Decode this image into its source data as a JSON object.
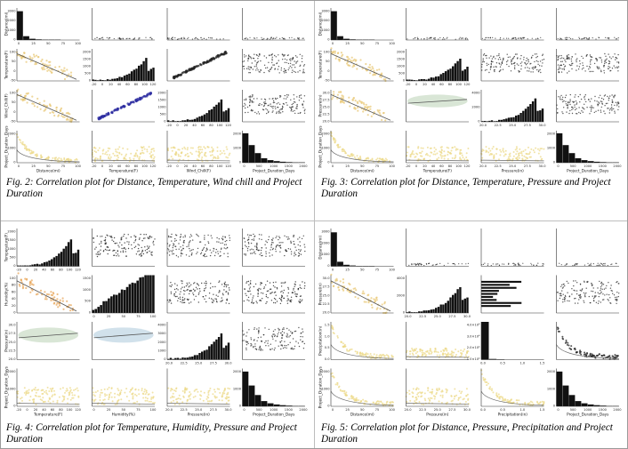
{
  "figures": [
    {
      "id": "fig2",
      "caption": "Fig. 2: Correlation plot for Distance, Temperature, Wind chill and Project Duration",
      "variables": [
        "Distance(mi)",
        "Temperature(F)",
        "Wind_Chill(F)",
        "Project_Duration_Days"
      ],
      "cells": [
        {
          "r": 0,
          "c": 0,
          "kind": "hist-low",
          "yticks": [
            "3000",
            "2000",
            "1000",
            "0"
          ],
          "xticks": [
            "0",
            "25",
            "50",
            "75",
            "100"
          ]
        },
        {
          "r": 0,
          "c": 1,
          "kind": "flat"
        },
        {
          "r": 0,
          "c": 2,
          "kind": "flat"
        },
        {
          "r": 0,
          "c": 3,
          "kind": "flat"
        },
        {
          "r": 1,
          "c": 0,
          "kind": "scatter-neg",
          "color": "#e9c97a",
          "yticks": [
            "100",
            "50",
            "0",
            "-50"
          ]
        },
        {
          "r": 1,
          "c": 1,
          "kind": "hist-right",
          "yticks": [
            "2000",
            "1500",
            "1000",
            "500",
            "0"
          ],
          "xticks": [
            "-20",
            "0",
            "20",
            "40",
            "60",
            "80",
            "100",
            "120"
          ]
        },
        {
          "r": 1,
          "c": 2,
          "kind": "diag",
          "color": "#222222"
        },
        {
          "r": 1,
          "c": 3,
          "kind": "blob",
          "color": "#222222"
        },
        {
          "r": 2,
          "c": 0,
          "kind": "scatter-neg",
          "color": "#e9c97a",
          "yticks": [
            "100",
            "50",
            "0",
            "-50"
          ]
        },
        {
          "r": 2,
          "c": 1,
          "kind": "diag",
          "color": "#2c2ca0"
        },
        {
          "r": 2,
          "c": 2,
          "kind": "hist-right",
          "yticks": [
            "2000",
            "1500",
            "1000",
            "500",
            "0"
          ],
          "xticks": [
            "-20",
            "0",
            "20",
            "40",
            "60",
            "80",
            "100",
            "120"
          ]
        },
        {
          "r": 2,
          "c": 3,
          "kind": "blob",
          "color": "#222222"
        },
        {
          "r": 3,
          "c": 0,
          "kind": "decay",
          "color": "#ecd98a",
          "yticks": [
            "2000",
            "1000",
            "0"
          ],
          "xticks": [
            "0",
            "25",
            "50",
            "75",
            "100"
          ]
        },
        {
          "r": 3,
          "c": 1,
          "kind": "band",
          "color": "#ecd98a",
          "xticks": [
            "-20",
            "0",
            "20",
            "40",
            "60",
            "80",
            "100",
            "120"
          ]
        },
        {
          "r": 3,
          "c": 2,
          "kind": "band",
          "color": "#ecd98a",
          "xticks": [
            "-20",
            "0",
            "20",
            "40",
            "60",
            "80",
            "100",
            "120"
          ]
        },
        {
          "r": 3,
          "c": 3,
          "kind": "hist-left",
          "yticks": [
            "2000",
            "1000",
            "0"
          ],
          "xticks": [
            "0",
            "500",
            "1000",
            "1500",
            "2000"
          ]
        }
      ]
    },
    {
      "id": "fig3",
      "caption": "Fig. 3: Correlation plot for Distance, Temperature, Pressure and Project Duration",
      "variables": [
        "Distance(mi)",
        "Temperature(F)",
        "Pressure(in)",
        "Project_Duration_Days"
      ],
      "cells": [
        {
          "r": 0,
          "c": 0,
          "kind": "hist-low",
          "yticks": [
            "3000",
            "2000",
            "1000",
            "0"
          ],
          "xticks": [
            "0",
            "25",
            "50",
            "75",
            "100"
          ]
        },
        {
          "r": 0,
          "c": 1,
          "kind": "flat"
        },
        {
          "r": 0,
          "c": 2,
          "kind": "flat"
        },
        {
          "r": 0,
          "c": 3,
          "kind": "flat"
        },
        {
          "r": 1,
          "c": 0,
          "kind": "scatter-neg",
          "color": "#e9c97a",
          "yticks": [
            "100",
            "50",
            "0",
            "-50"
          ]
        },
        {
          "r": 1,
          "c": 1,
          "kind": "hist-right",
          "yticks": [
            "2000",
            "1500",
            "1000",
            "500",
            "0"
          ],
          "xticks": [
            "-20",
            "0",
            "20",
            "40",
            "60",
            "80",
            "100",
            "120"
          ]
        },
        {
          "r": 1,
          "c": 2,
          "kind": "blob",
          "color": "#222222"
        },
        {
          "r": 1,
          "c": 3,
          "kind": "blob",
          "color": "#222222"
        },
        {
          "r": 2,
          "c": 0,
          "kind": "scatter-neg",
          "color": "#e9c97a",
          "yticks": [
            "30.0",
            "27.5",
            "25.0",
            "22.5",
            "20.0"
          ]
        },
        {
          "r": 2,
          "c": 1,
          "kind": "band-up",
          "color": "#cfe0cc"
        },
        {
          "r": 2,
          "c": 2,
          "kind": "hist-right",
          "yticks": [
            "4000",
            "2000",
            "0"
          ],
          "xticks": [
            "20.0",
            "22.5",
            "25.0",
            "27.5",
            "30.0"
          ]
        },
        {
          "r": 2,
          "c": 3,
          "kind": "blob",
          "color": "#222222"
        },
        {
          "r": 3,
          "c": 0,
          "kind": "decay",
          "color": "#ecd98a",
          "yticks": [
            "2000",
            "1000",
            "0"
          ],
          "xticks": [
            "0",
            "25",
            "50",
            "75",
            "100"
          ]
        },
        {
          "r": 3,
          "c": 1,
          "kind": "band",
          "color": "#ecd98a",
          "xticks": [
            "-20",
            "0",
            "20",
            "40",
            "60",
            "80",
            "100",
            "120"
          ]
        },
        {
          "r": 3,
          "c": 2,
          "kind": "band",
          "color": "#ecd98a",
          "xticks": [
            "20.0",
            "22.5",
            "25.0",
            "27.5",
            "30.0"
          ]
        },
        {
          "r": 3,
          "c": 3,
          "kind": "hist-left",
          "yticks": [
            "2000",
            "1000",
            "0"
          ],
          "xticks": [
            "0",
            "500",
            "1000",
            "1500",
            "2000"
          ]
        }
      ]
    },
    {
      "id": "fig4",
      "caption": "Fig. 4: Correlation plot for Temperature, Humidity, Pressure and Project Duration",
      "variables": [
        "Temperature(F)",
        "Humidity(%)",
        "Pressure(in)",
        "Project_Duration_Days"
      ],
      "cells": [
        {
          "r": 0,
          "c": 0,
          "kind": "hist-right",
          "yticks": [
            "2000",
            "1500",
            "1000",
            "500",
            "0"
          ],
          "xticks": [
            "-20",
            "0",
            "20",
            "40",
            "60",
            "80",
            "100",
            "120"
          ]
        },
        {
          "r": 0,
          "c": 1,
          "kind": "blob",
          "color": "#111111"
        },
        {
          "r": 0,
          "c": 2,
          "kind": "blob",
          "color": "#222222"
        },
        {
          "r": 0,
          "c": 3,
          "kind": "blob",
          "color": "#222222"
        },
        {
          "r": 1,
          "c": 0,
          "kind": "scatter-neg",
          "color": "#e8a85e",
          "yticks": [
            "100",
            "80",
            "60",
            "40",
            "20",
            "0"
          ]
        },
        {
          "r": 1,
          "c": 1,
          "kind": "hist-ramp",
          "yticks": [
            "1500",
            "1000",
            "500",
            "0"
          ],
          "xticks": [
            "0",
            "25",
            "50",
            "75",
            "100"
          ]
        },
        {
          "r": 1,
          "c": 2,
          "kind": "blob",
          "color": "#111111"
        },
        {
          "r": 1,
          "c": 3,
          "kind": "blob",
          "color": "#111111"
        },
        {
          "r": 2,
          "c": 0,
          "kind": "band-up",
          "color": "#cfe0cc",
          "yticks": [
            "30.0",
            "27.5",
            "25.0",
            "22.5",
            "20.0"
          ]
        },
        {
          "r": 2,
          "c": 1,
          "kind": "band-up",
          "color": "#c5d9e6"
        },
        {
          "r": 2,
          "c": 2,
          "kind": "hist-right",
          "yticks": [
            "4000",
            "3000",
            "2000",
            "1000",
            "0"
          ],
          "xticks": [
            "20.0",
            "22.5",
            "25.0",
            "27.5",
            "30.0"
          ]
        },
        {
          "r": 2,
          "c": 3,
          "kind": "blob",
          "color": "#222222"
        },
        {
          "r": 3,
          "c": 0,
          "kind": "band",
          "color": "#ecd98a",
          "yticks": [
            "2000",
            "1000",
            "0"
          ],
          "xticks": [
            "-20",
            "0",
            "20",
            "40",
            "60",
            "80",
            "100",
            "120"
          ]
        },
        {
          "r": 3,
          "c": 1,
          "kind": "band",
          "color": "#ecd98a",
          "xticks": [
            "0",
            "25",
            "50",
            "75",
            "100"
          ]
        },
        {
          "r": 3,
          "c": 2,
          "kind": "band",
          "color": "#ecd98a",
          "xticks": [
            "20.0",
            "22.5",
            "25.0",
            "27.5",
            "30.0"
          ]
        },
        {
          "r": 3,
          "c": 3,
          "kind": "hist-left",
          "yticks": [
            "2000",
            "1000",
            "0"
          ],
          "xticks": [
            "0",
            "500",
            "1000",
            "1500",
            "2000"
          ]
        }
      ]
    },
    {
      "id": "fig5",
      "caption": "Fig. 5: Correlation plot for Distance, Pressure, Precipitation and Project Duration",
      "variables": [
        "Distance(mi)",
        "Pressure(in)",
        "Precipitation(in)",
        "Project_Duration_Days"
      ],
      "cells": [
        {
          "r": 0,
          "c": 0,
          "kind": "hist-low",
          "yticks": [
            "3000",
            "2000",
            "1000",
            "0"
          ],
          "xticks": [
            "0",
            "25",
            "50",
            "75",
            "100"
          ]
        },
        {
          "r": 0,
          "c": 1,
          "kind": "flat"
        },
        {
          "r": 0,
          "c": 2,
          "kind": "flat"
        },
        {
          "r": 0,
          "c": 3,
          "kind": "flat"
        },
        {
          "r": 1,
          "c": 0,
          "kind": "scatter-neg",
          "color": "#e9c97a",
          "yticks": [
            "30.0",
            "27.5",
            "25.0",
            "22.5",
            "20.0"
          ]
        },
        {
          "r": 1,
          "c": 1,
          "kind": "hist-right",
          "yticks": [
            "4000",
            "2000",
            "0"
          ],
          "xticks": [
            "20.0",
            "22.5",
            "25.0",
            "27.5",
            "30.0"
          ]
        },
        {
          "r": 1,
          "c": 2,
          "kind": "bars-left",
          "color": "#111111"
        },
        {
          "r": 1,
          "c": 3,
          "kind": "blob",
          "color": "#222222"
        },
        {
          "r": 2,
          "c": 0,
          "kind": "decay",
          "color": "#ecd98a",
          "yticks": [
            "1.5",
            "1.0",
            "0.5",
            "0.0"
          ]
        },
        {
          "r": 2,
          "c": 1,
          "kind": "band-low",
          "color": "#ecd98a"
        },
        {
          "r": 2,
          "c": 2,
          "kind": "hist-spike",
          "yticks": [
            "4.0×10⁴",
            "3.0×10⁴",
            "2.0×10⁴",
            "1.0×10⁴"
          ],
          "xticks": [
            "0.0",
            "0.5",
            "1.0",
            "1.5"
          ]
        },
        {
          "r": 2,
          "c": 3,
          "kind": "decay",
          "color": "#222222"
        },
        {
          "r": 3,
          "c": 0,
          "kind": "decay",
          "color": "#ecd98a",
          "yticks": [
            "2000",
            "1000",
            "0"
          ],
          "xticks": [
            "0",
            "25",
            "50",
            "75",
            "100"
          ]
        },
        {
          "r": 3,
          "c": 1,
          "kind": "band",
          "color": "#ecd98a",
          "xticks": [
            "20.0",
            "22.5",
            "25.0",
            "27.5",
            "30.0"
          ]
        },
        {
          "r": 3,
          "c": 2,
          "kind": "decay",
          "color": "#ecd98a",
          "xticks": [
            "0.0",
            "0.5",
            "1.0",
            "1.5"
          ]
        },
        {
          "r": 3,
          "c": 3,
          "kind": "hist-left",
          "yticks": [
            "2000",
            "1000",
            "0"
          ],
          "xticks": [
            "0",
            "500",
            "1000",
            "1500",
            "2000"
          ]
        }
      ]
    }
  ]
}
